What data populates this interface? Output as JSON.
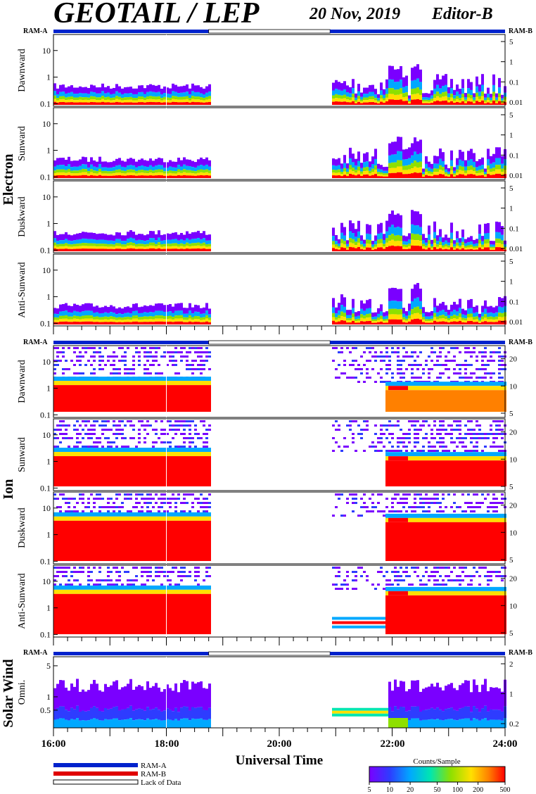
{
  "header": {
    "title": "GEOTAIL / LEP",
    "date": "20 Nov, 2019",
    "editor": "Editor-B"
  },
  "mode_labels": {
    "left": "RAM-A",
    "right": "RAM-B"
  },
  "groups": [
    {
      "name": "Electron",
      "panels": [
        "Dawnward",
        "Sunward",
        "Duskward",
        "Anti-Sunward"
      ]
    },
    {
      "name": "Ion",
      "panels": [
        "Dawnward",
        "Sunward",
        "Duskward",
        "Anti-Sunward"
      ]
    },
    {
      "name": "Solar Wind",
      "panels": [
        "Omni."
      ]
    }
  ],
  "x_axis": {
    "label": "Universal Time",
    "ticks": [
      "16:00",
      "18:00",
      "20:00",
      "22:00",
      "24:00"
    ]
  },
  "legend": {
    "items": [
      {
        "label": "RAM-A",
        "color": "#0022cc"
      },
      {
        "label": "RAM-B",
        "color": "#e00000"
      },
      {
        "label": "Lack of Data",
        "color": "#ffffff"
      }
    ]
  },
  "colorbar": {
    "title": "Counts/Sample",
    "ticks": [
      "5",
      "10",
      "20",
      "50",
      "100",
      "200",
      "500"
    ]
  },
  "chart_data": {
    "type": "heatmap",
    "x_range_hours": [
      16,
      24
    ],
    "data_gap_hours": [
      18.75,
      20.9
    ],
    "mode_segments": [
      {
        "mode": "RAM-A",
        "start": 16,
        "end": 18.75
      },
      {
        "mode": "Lack of Data",
        "start": 18.75,
        "end": 20.9
      },
      {
        "mode": "RAM-A",
        "start": 20.9,
        "end": 24
      }
    ],
    "electron": {
      "y_left_ticks": [
        "0.1",
        "1",
        "10"
      ],
      "y_right_ticks": [
        "0.01",
        "0.1",
        "1",
        "5"
      ],
      "y_left_range": [
        0.08,
        40
      ]
    },
    "ion": {
      "y_left_ticks": [
        "0.1",
        "1",
        "10"
      ],
      "y_right_ticks": [
        "5",
        "10",
        "20"
      ],
      "y_left_range": [
        0.08,
        40
      ]
    },
    "solar_wind": {
      "y_left_ticks": [
        "0.5",
        "1",
        "5"
      ],
      "y_right_ticks": [
        "0.2",
        "1",
        "2"
      ],
      "y_left_range": [
        0.2,
        8
      ]
    },
    "colorscale": [
      "#7a00ff",
      "#2e3cff",
      "#00a8ff",
      "#00e6b0",
      "#8ee000",
      "#ffe000",
      "#ff8000",
      "#ff0000"
    ]
  }
}
